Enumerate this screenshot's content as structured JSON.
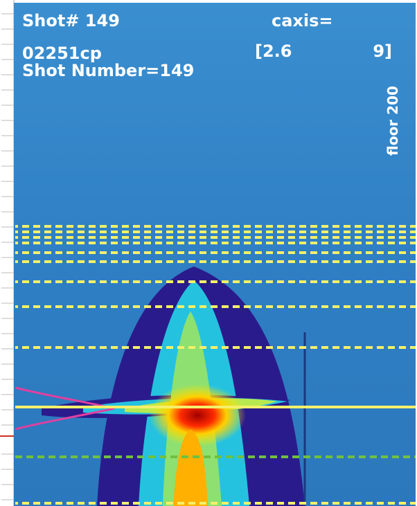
{
  "overlay": {
    "shot": "Shot# 149",
    "caxis": "caxis=",
    "file": "02251cp",
    "range_low": "[2.6",
    "range_high": "9]",
    "shot_number": "Shot Number=149",
    "floor": "floor 200"
  }
}
